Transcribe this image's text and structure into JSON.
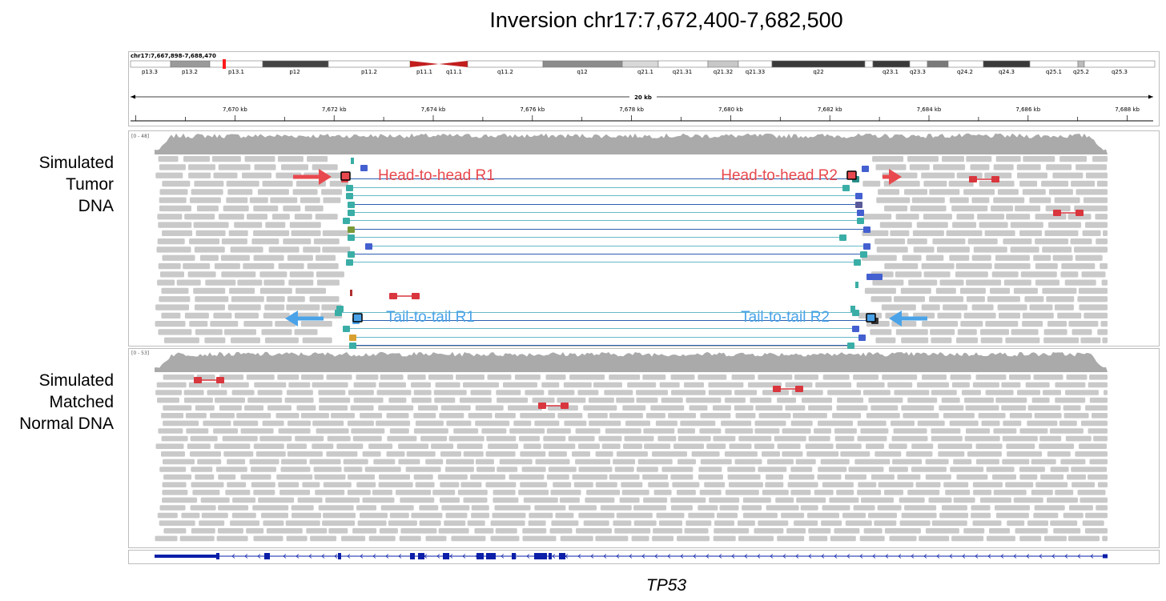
{
  "figure_title": "Inversion chr17:7,672,400-7,682,500",
  "locus_label": "chr17:7,667,898-7,688,470",
  "ideogram_bands": [
    "p13.3",
    "p13.2",
    "p13.1",
    "p12",
    "p11.2",
    "p11.1",
    "q11.1",
    "q11.2",
    "q12",
    "q21.1",
    "q21.31",
    "q21.32",
    "q21.33",
    "q22",
    "q23.1",
    "q23.3",
    "q24.2",
    "q24.3",
    "q25.1",
    "q25.2",
    "q25.3"
  ],
  "ruler_span_label": "20 kb",
  "ruler_ticks": [
    "7,670 kb",
    "7,672 kb",
    "7,674 kb",
    "7,676 kb",
    "7,678 kb",
    "7,680 kb",
    "7,682 kb",
    "7,684 kb",
    "7,686 kb",
    "7,688 kb"
  ],
  "tracks": [
    {
      "label_lines": [
        "Simulated",
        "Tumor",
        "DNA"
      ],
      "coverage_range": "[0 - 48]"
    },
    {
      "label_lines": [
        "Simulated",
        "Matched",
        "Normal DNA"
      ],
      "coverage_range": "[0 - 53]"
    }
  ],
  "annotations": {
    "hh_r1": "Head-to-head R1",
    "hh_r2": "Head-to-head R2",
    "tt_r1": "Tail-to-tail R1",
    "tt_r2": "Tail-to-tail R2"
  },
  "gene_name": "TP53",
  "icons": [
    "arrow-right-icon",
    "arrow-left-icon"
  ],
  "colors": {
    "read_gray": "#c9c9c9",
    "coverage_gray": "#aaaaaa",
    "discordant_red": "#d9363e",
    "head_to_head": "#e8494e",
    "tail_to_tail": "#4aa3e8",
    "split_teal": "#3aaea6",
    "split_blue": "#4460d0",
    "gene_blue": "#0b1fa8"
  }
}
